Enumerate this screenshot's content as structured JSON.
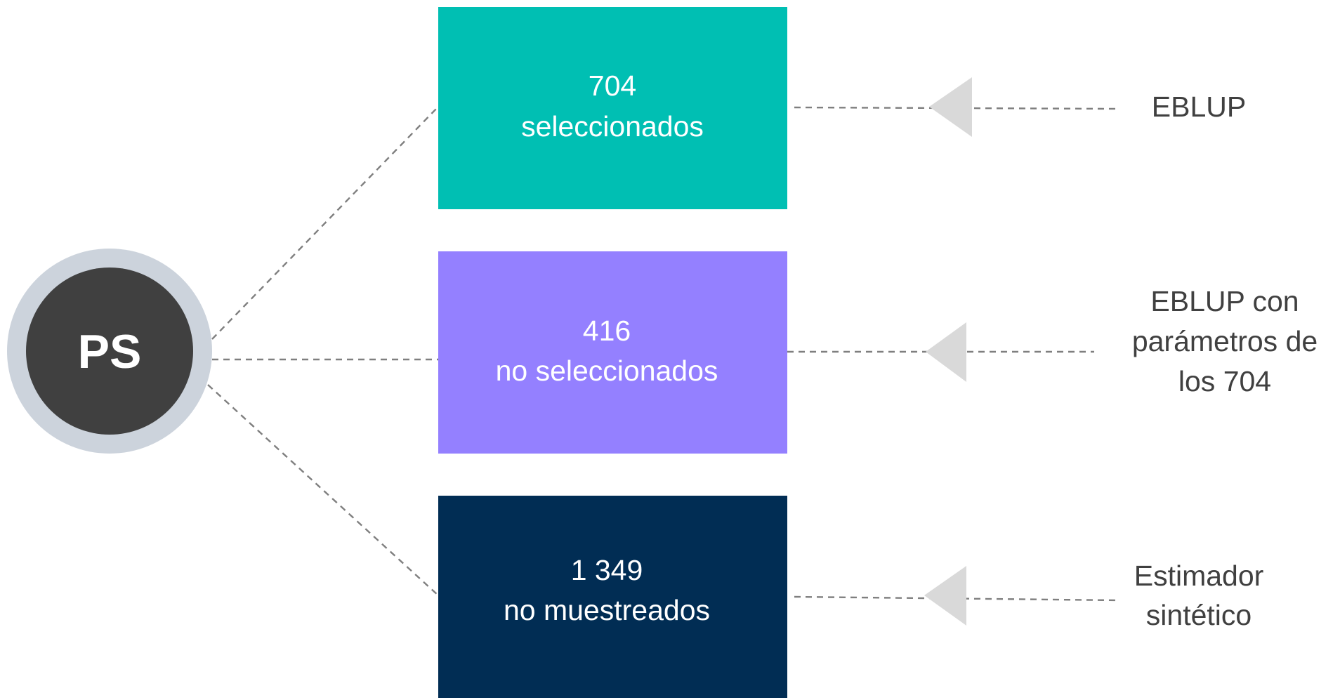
{
  "center": {
    "label": "PS"
  },
  "groups": [
    {
      "count": "704",
      "label": "seleccionados",
      "method": [
        "EBLUP"
      ]
    },
    {
      "count": "416",
      "label": "no seleccionados",
      "method": [
        "EBLUP con",
        "parámetros de",
        "los 704"
      ]
    },
    {
      "count": "1 349",
      "label": "no muestreados",
      "method": [
        "Estimador",
        "sintético"
      ]
    }
  ]
}
